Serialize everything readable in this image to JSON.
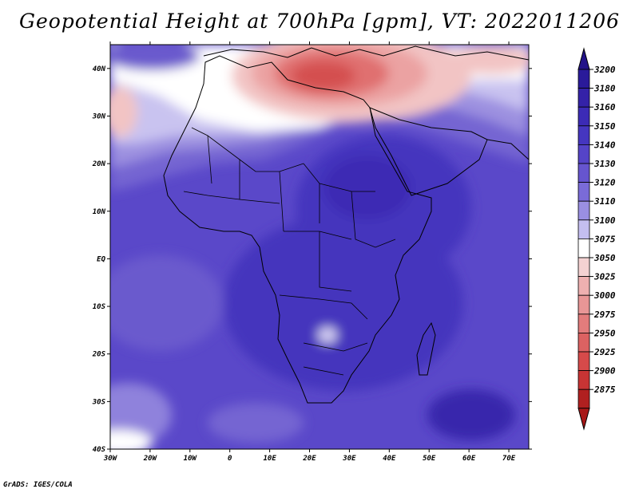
{
  "title": "Geopotential Height at 700hPa [gpm], VT: 2022011206",
  "footer": "GrADS: IGES/COLA",
  "map": {
    "lon_range": [
      -30,
      75
    ],
    "lat_range": [
      -40,
      45
    ],
    "lon_ticks": [
      {
        "value": -30,
        "label": "30W"
      },
      {
        "value": -20,
        "label": "20W"
      },
      {
        "value": -10,
        "label": "10W"
      },
      {
        "value": 0,
        "label": "0"
      },
      {
        "value": 10,
        "label": "10E"
      },
      {
        "value": 20,
        "label": "20E"
      },
      {
        "value": 30,
        "label": "30E"
      },
      {
        "value": 40,
        "label": "40E"
      },
      {
        "value": 50,
        "label": "50E"
      },
      {
        "value": 60,
        "label": "60E"
      },
      {
        "value": 70,
        "label": "70E"
      }
    ],
    "lat_ticks": [
      {
        "value": 40,
        "label": "40N"
      },
      {
        "value": 30,
        "label": "30N"
      },
      {
        "value": 20,
        "label": "20N"
      },
      {
        "value": 10,
        "label": "10N"
      },
      {
        "value": 0,
        "label": "EQ"
      },
      {
        "value": -10,
        "label": "10S"
      },
      {
        "value": -20,
        "label": "20S"
      },
      {
        "value": -30,
        "label": "30S"
      },
      {
        "value": -40,
        "label": "40S"
      }
    ]
  },
  "colorbar": {
    "levels": [
      {
        "label": "3200",
        "color": "#2a1a9a"
      },
      {
        "label": "3180",
        "color": "#3422a8"
      },
      {
        "label": "3160",
        "color": "#3c2bb6"
      },
      {
        "label": "3150",
        "color": "#4536c0"
      },
      {
        "label": "3140",
        "color": "#5544c8"
      },
      {
        "label": "3130",
        "color": "#6655cf"
      },
      {
        "label": "3120",
        "color": "#7a6bd8"
      },
      {
        "label": "3110",
        "color": "#9a8fe2"
      },
      {
        "label": "3100",
        "color": "#c4bff0"
      },
      {
        "label": "3075",
        "color": "#ffffff"
      },
      {
        "label": "3050",
        "color": "#f4d2d2"
      },
      {
        "label": "3025",
        "color": "#eeb0b0"
      },
      {
        "label": "3000",
        "color": "#e89696"
      },
      {
        "label": "2975",
        "color": "#e27c7c"
      },
      {
        "label": "2950",
        "color": "#dc6262"
      },
      {
        "label": "2925",
        "color": "#d64a4a"
      },
      {
        "label": "2900",
        "color": "#c83434"
      },
      {
        "label": "2875",
        "color": "#b02020"
      }
    ],
    "top_arrow_color": "#231389",
    "bottom_arrow_color": "#a81818"
  }
}
